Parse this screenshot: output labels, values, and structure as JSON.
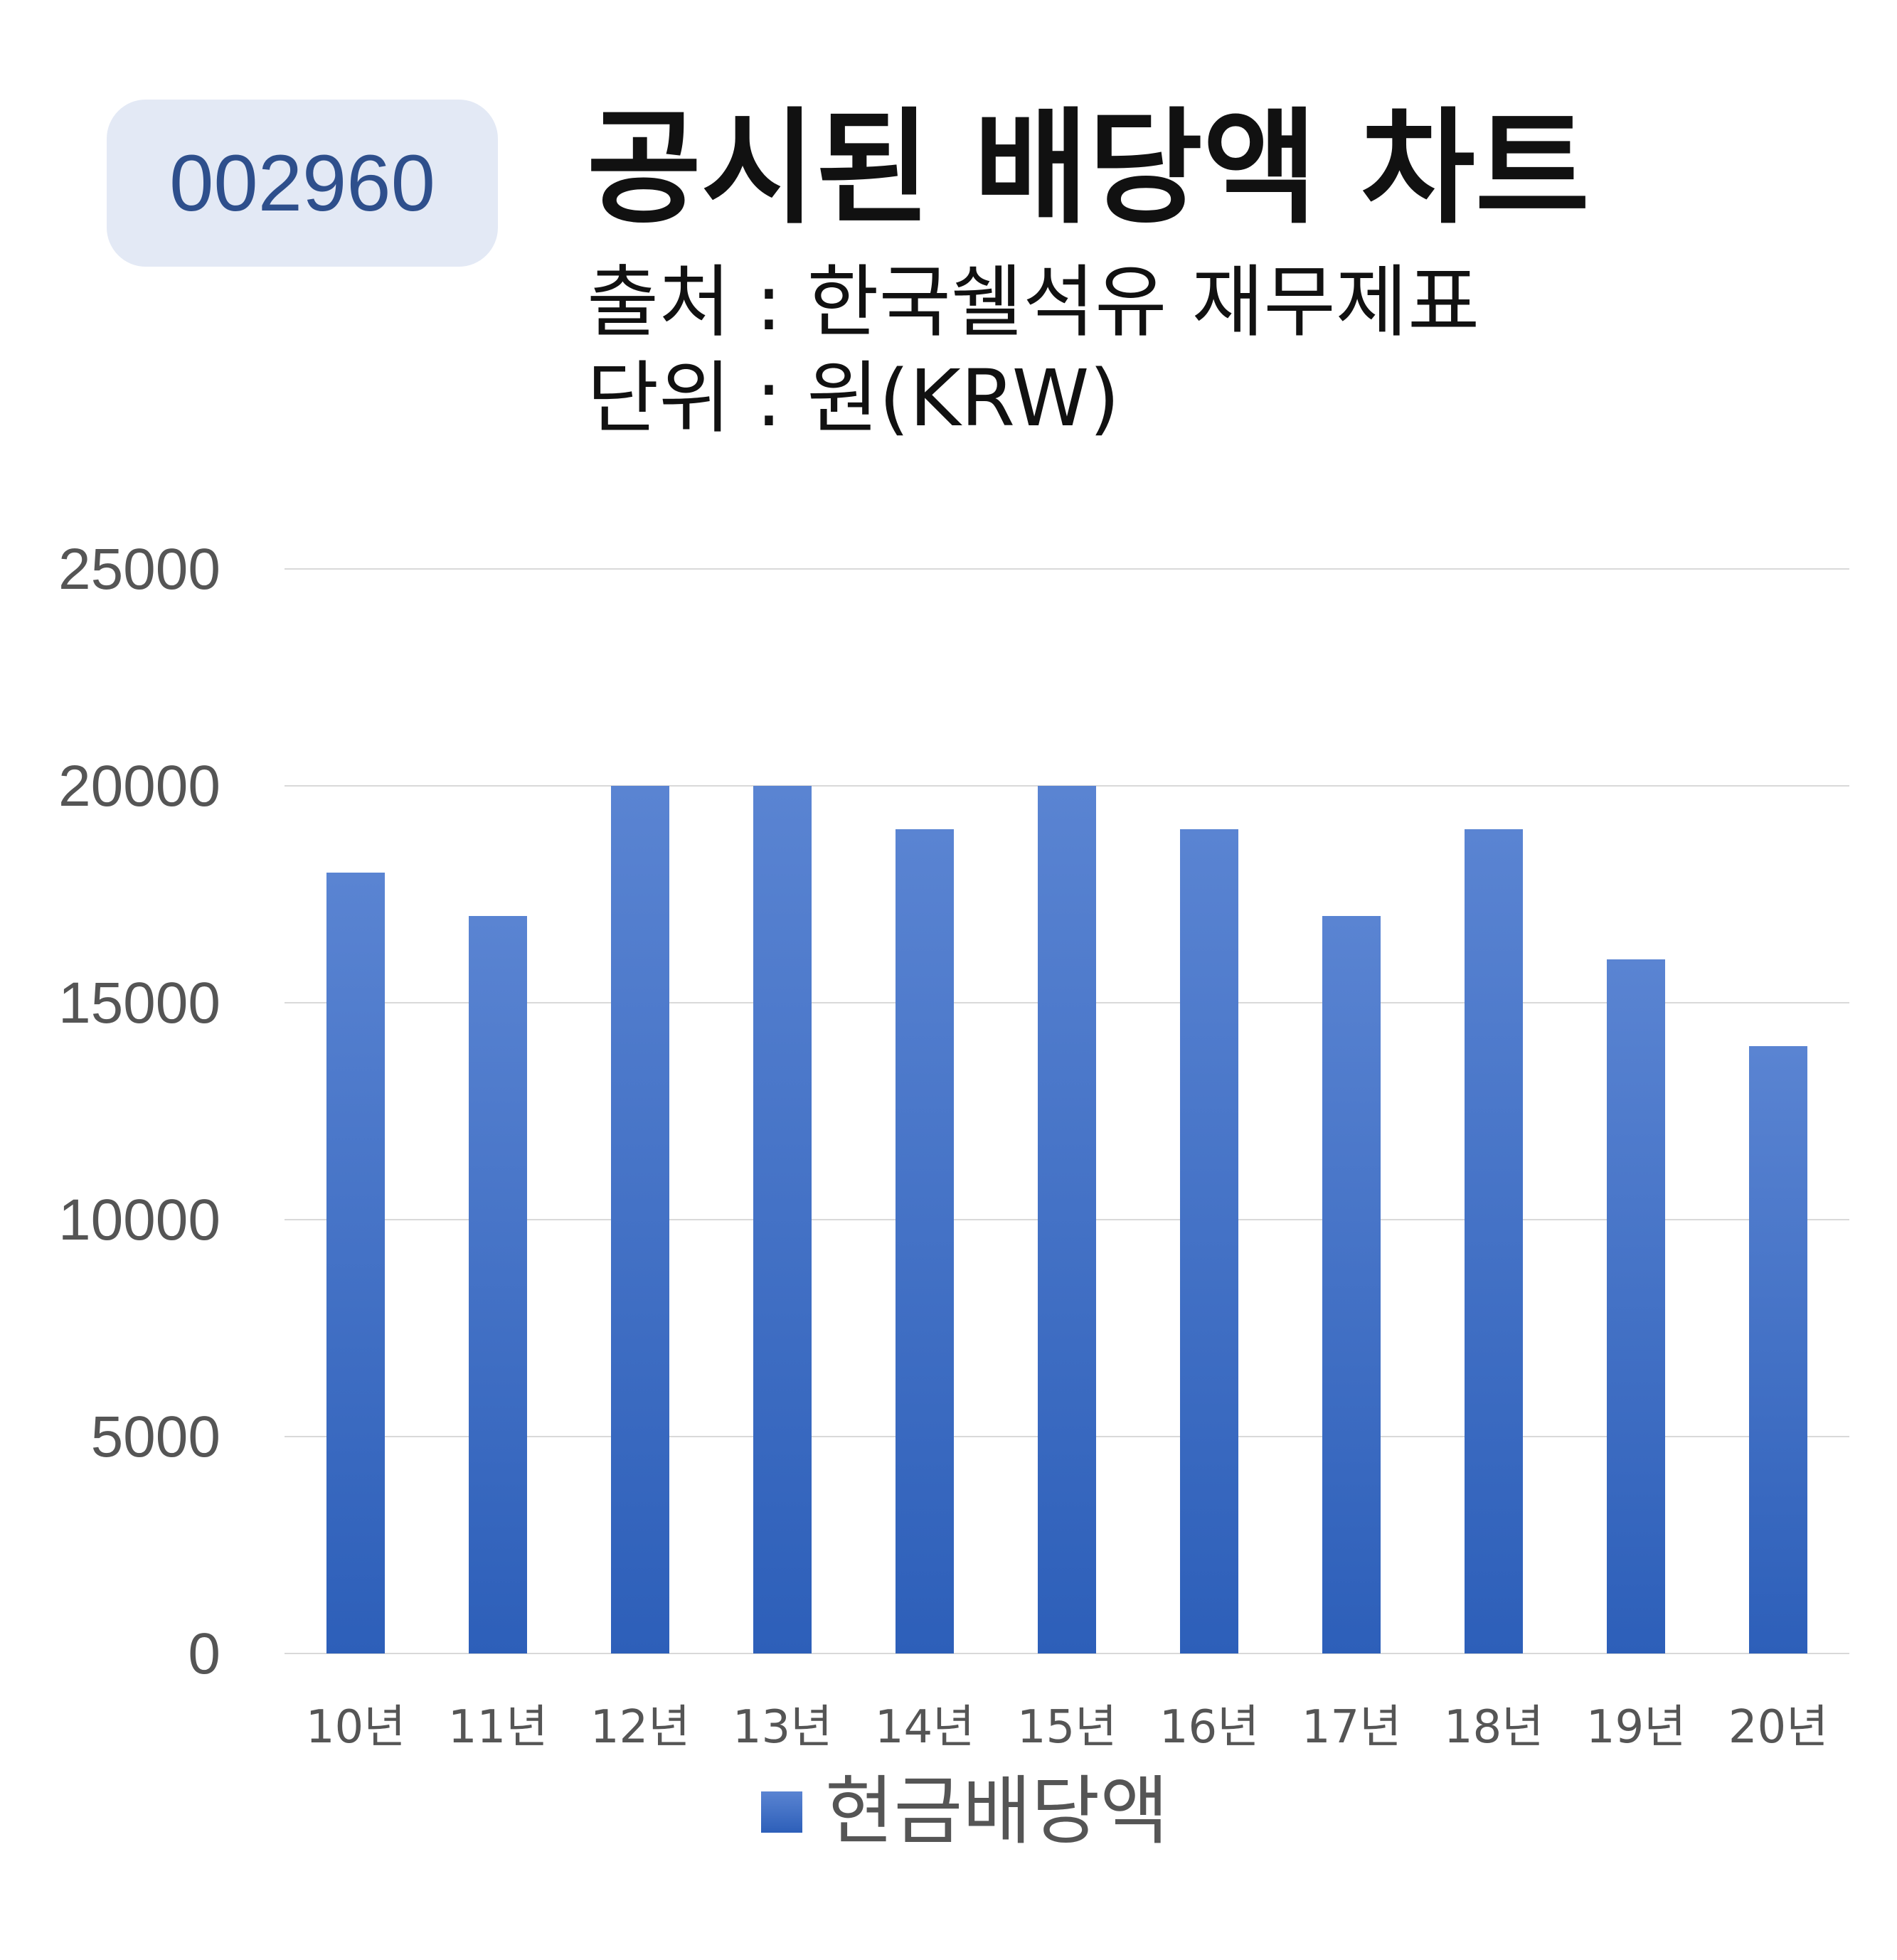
{
  "badge": {
    "code": "002960"
  },
  "header": {
    "title": "공시된 배당액 차트",
    "source": "출처 : 한국쉘석유 재무제표",
    "unit": "단위 : 원(KRW)"
  },
  "chart_data": {
    "type": "bar",
    "categories": [
      "10년",
      "11년",
      "12년",
      "13년",
      "14년",
      "15년",
      "16년",
      "17년",
      "18년",
      "19년",
      "20년"
    ],
    "series": [
      {
        "name": "현금배당액",
        "values": [
          18000,
          17000,
          20000,
          20000,
          19000,
          20000,
          19000,
          17000,
          19000,
          16000,
          14000
        ]
      }
    ],
    "ylim": [
      0,
      25000
    ],
    "yticks": [
      "0",
      "5000",
      "10000",
      "15000",
      "20000",
      "25000"
    ],
    "grid": true,
    "legend_position": "bottom",
    "colors": {
      "bar_top": "#5a84d2",
      "bar_bottom": "#2d5fb9",
      "grid": "#d9d9d9",
      "tick_text": "#555555"
    }
  }
}
